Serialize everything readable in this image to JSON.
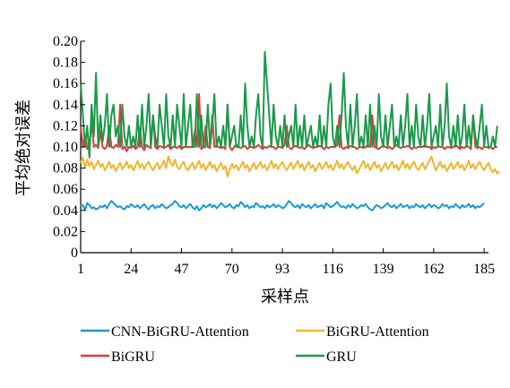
{
  "chart_data": {
    "type": "line",
    "title": "",
    "xlabel": "采样点",
    "ylabel": "平均绝对误差",
    "xlim": [
      1,
      187
    ],
    "ylim": [
      0,
      0.2
    ],
    "x_ticks": [
      1,
      24,
      47,
      70,
      93,
      116,
      139,
      162,
      185
    ],
    "y_ticks": [
      "0",
      "0.02",
      "0.04",
      "0.06",
      "0.08",
      "0.10",
      "0.12",
      "0.14",
      "0.16",
      "0.18",
      "0.20"
    ],
    "grid": false,
    "legend_position": "bottom",
    "series": [
      {
        "name": "CNN-BiGRU-Attention",
        "color": "#1a9ad6",
        "values": [
          0.044,
          0.045,
          0.04,
          0.047,
          0.045,
          0.042,
          0.043,
          0.041,
          0.042,
          0.044,
          0.043,
          0.045,
          0.042,
          0.046,
          0.049,
          0.047,
          0.045,
          0.043,
          0.044,
          0.042,
          0.041,
          0.044,
          0.043,
          0.046,
          0.044,
          0.043,
          0.045,
          0.042,
          0.044,
          0.046,
          0.043,
          0.041,
          0.044,
          0.045,
          0.042,
          0.044,
          0.043,
          0.046,
          0.044,
          0.042,
          0.043,
          0.045,
          0.046,
          0.049,
          0.047,
          0.044,
          0.043,
          0.045,
          0.042,
          0.044,
          0.046,
          0.043,
          0.041,
          0.044,
          0.04,
          0.042,
          0.045,
          0.043,
          0.044,
          0.046,
          0.043,
          0.045,
          0.042,
          0.044,
          0.047,
          0.045,
          0.043,
          0.044,
          0.046,
          0.043,
          0.042,
          0.045,
          0.044,
          0.048,
          0.046,
          0.043,
          0.045,
          0.042,
          0.044,
          0.043,
          0.047,
          0.045,
          0.043,
          0.044,
          0.042,
          0.045,
          0.043,
          0.044,
          0.046,
          0.043,
          0.045,
          0.044,
          0.042,
          0.043,
          0.046,
          0.049,
          0.047,
          0.044,
          0.043,
          0.045,
          0.042,
          0.046,
          0.044,
          0.043,
          0.045,
          0.042,
          0.044,
          0.046,
          0.043,
          0.044,
          0.045,
          0.042,
          0.047,
          0.045,
          0.043,
          0.044,
          0.046,
          0.048,
          0.045,
          0.043,
          0.044,
          0.042,
          0.045,
          0.043,
          0.046,
          0.044,
          0.042,
          0.043,
          0.045,
          0.044,
          0.046,
          0.043,
          0.041,
          0.04,
          0.043,
          0.045,
          0.044,
          0.042,
          0.043,
          0.045,
          0.047,
          0.044,
          0.043,
          0.045,
          0.042,
          0.044,
          0.046,
          0.043,
          0.044,
          0.045,
          0.042,
          0.044,
          0.043,
          0.046,
          0.044,
          0.043,
          0.045,
          0.042,
          0.044,
          0.046,
          0.043,
          0.045,
          0.044,
          0.042,
          0.043,
          0.046,
          0.044,
          0.045,
          0.042,
          0.044,
          0.043,
          0.046,
          0.044,
          0.042,
          0.045,
          0.043,
          0.044,
          0.046,
          0.043,
          0.045,
          0.042,
          0.044,
          0.043,
          0.045,
          0.047
        ]
      },
      {
        "name": "BiGRU-Attention",
        "color": "#f0b530",
        "values": [
          0.085,
          0.09,
          0.08,
          0.088,
          0.082,
          0.086,
          0.079,
          0.083,
          0.087,
          0.081,
          0.084,
          0.078,
          0.082,
          0.086,
          0.08,
          0.083,
          0.077,
          0.081,
          0.085,
          0.079,
          0.082,
          0.086,
          0.08,
          0.083,
          0.078,
          0.082,
          0.087,
          0.08,
          0.084,
          0.079,
          0.083,
          0.086,
          0.081,
          0.078,
          0.082,
          0.085,
          0.079,
          0.083,
          0.087,
          0.08,
          0.091,
          0.085,
          0.082,
          0.088,
          0.081,
          0.079,
          0.083,
          0.086,
          0.08,
          0.078,
          0.082,
          0.085,
          0.079,
          0.083,
          0.087,
          0.08,
          0.084,
          0.078,
          0.082,
          0.086,
          0.08,
          0.083,
          0.077,
          0.081,
          0.085,
          0.079,
          0.082,
          0.072,
          0.079,
          0.084,
          0.08,
          0.083,
          0.078,
          0.082,
          0.086,
          0.08,
          0.083,
          0.077,
          0.081,
          0.085,
          0.079,
          0.082,
          0.086,
          0.08,
          0.083,
          0.078,
          0.082,
          0.087,
          0.08,
          0.084,
          0.079,
          0.083,
          0.086,
          0.081,
          0.078,
          0.082,
          0.085,
          0.079,
          0.083,
          0.087,
          0.08,
          0.084,
          0.078,
          0.082,
          0.086,
          0.08,
          0.083,
          0.077,
          0.081,
          0.085,
          0.079,
          0.082,
          0.086,
          0.08,
          0.083,
          0.078,
          0.082,
          0.087,
          0.08,
          0.084,
          0.079,
          0.083,
          0.086,
          0.081,
          0.078,
          0.082,
          0.075,
          0.079,
          0.083,
          0.087,
          0.08,
          0.084,
          0.078,
          0.082,
          0.086,
          0.08,
          0.083,
          0.077,
          0.081,
          0.085,
          0.079,
          0.082,
          0.086,
          0.08,
          0.083,
          0.078,
          0.082,
          0.087,
          0.08,
          0.084,
          0.079,
          0.083,
          0.086,
          0.081,
          0.078,
          0.082,
          0.085,
          0.079,
          0.083,
          0.087,
          0.091,
          0.084,
          0.078,
          0.082,
          0.086,
          0.08,
          0.083,
          0.077,
          0.081,
          0.085,
          0.079,
          0.082,
          0.086,
          0.08,
          0.083,
          0.078,
          0.082,
          0.087,
          0.08,
          0.084,
          0.079,
          0.083,
          0.086,
          0.081,
          0.078,
          0.082,
          0.085,
          0.079,
          0.076,
          0.079,
          0.075,
          0.077
        ]
      },
      {
        "name": "BiGRU",
        "color": "#e03a3a",
        "values": [
          0.12,
          0.1,
          0.11,
          0.098,
          0.1,
          0.125,
          0.1,
          0.102,
          0.099,
          0.115,
          0.1,
          0.098,
          0.101,
          0.12,
          0.1,
          0.099,
          0.102,
          0.1,
          0.14,
          0.098,
          0.1,
          0.096,
          0.1,
          0.099,
          0.101,
          0.098,
          0.1,
          0.118,
          0.1,
          0.097,
          0.102,
          0.1,
          0.099,
          0.13,
          0.1,
          0.098,
          0.101,
          0.1,
          0.099,
          0.1,
          0.102,
          0.098,
          0.1,
          0.1,
          0.099,
          0.101,
          0.098,
          0.1,
          0.1,
          0.1,
          0.1,
          0.1,
          0.115,
          0.1,
          0.15,
          0.098,
          0.1,
          0.12,
          0.1,
          0.099,
          0.13,
          0.1,
          0.101,
          0.1,
          0.099,
          0.1,
          0.098,
          0.14,
          0.1,
          0.097,
          0.1,
          0.102,
          0.1,
          0.099,
          0.1,
          0.101,
          0.098,
          0.1,
          0.1,
          0.099,
          0.1,
          0.102,
          0.1,
          0.098,
          0.1,
          0.099,
          0.101,
          0.1,
          0.1,
          0.098,
          0.1,
          0.1,
          0.099,
          0.102,
          0.12,
          0.1,
          0.098,
          0.1,
          0.101,
          0.1,
          0.099,
          0.1,
          0.098,
          0.1,
          0.102,
          0.1,
          0.099,
          0.1,
          0.1,
          0.101,
          0.1,
          0.098,
          0.1,
          0.099,
          0.1,
          0.1,
          0.1,
          0.102,
          0.13,
          0.1,
          0.098,
          0.1,
          0.099,
          0.101,
          0.1,
          0.1,
          0.098,
          0.1,
          0.1,
          0.099,
          0.1,
          0.102,
          0.1,
          0.13,
          0.1,
          0.099,
          0.098,
          0.1,
          0.101,
          0.1,
          0.099,
          0.1,
          0.098,
          0.1,
          0.102,
          0.1,
          0.099,
          0.1,
          0.1,
          0.101,
          0.1,
          0.098,
          0.1,
          0.099,
          0.1,
          0.1,
          0.1,
          0.102,
          0.1,
          0.1,
          0.098,
          0.1,
          0.099,
          0.101,
          0.1,
          0.1,
          0.098,
          0.1,
          0.1,
          0.099,
          0.1,
          0.102,
          0.1,
          0.098,
          0.1,
          0.099,
          0.101,
          0.1,
          0.098,
          0.13,
          0.1,
          0.099,
          0.1,
          0.098,
          0.1,
          0.1,
          0.099,
          0.1,
          0.098,
          0.1,
          0.1
        ]
      },
      {
        "name": "GRU",
        "color": "#1a9a4a",
        "values": [
          0.16,
          0.13,
          0.1,
          0.12,
          0.09,
          0.14,
          0.11,
          0.17,
          0.1,
          0.13,
          0.105,
          0.12,
          0.15,
          0.1,
          0.13,
          0.14,
          0.11,
          0.12,
          0.1,
          0.14,
          0.11,
          0.1,
          0.12,
          0.1,
          0.11,
          0.1,
          0.13,
          0.1,
          0.14,
          0.1,
          0.12,
          0.15,
          0.1,
          0.13,
          0.11,
          0.1,
          0.14,
          0.12,
          0.1,
          0.15,
          0.11,
          0.1,
          0.13,
          0.1,
          0.14,
          0.12,
          0.1,
          0.15,
          0.1,
          0.12,
          0.14,
          0.1,
          0.1,
          0.15,
          0.1,
          0.13,
          0.1,
          0.1,
          0.14,
          0.1,
          0.12,
          0.15,
          0.1,
          0.11,
          0.1,
          0.12,
          0.1,
          0.14,
          0.1,
          0.11,
          0.12,
          0.1,
          0.1,
          0.13,
          0.1,
          0.16,
          0.12,
          0.1,
          0.11,
          0.1,
          0.13,
          0.15,
          0.11,
          0.1,
          0.19,
          0.16,
          0.13,
          0.1,
          0.14,
          0.11,
          0.1,
          0.12,
          0.1,
          0.13,
          0.1,
          0.11,
          0.12,
          0.1,
          0.14,
          0.1,
          0.12,
          0.1,
          0.13,
          0.1,
          0.11,
          0.12,
          0.1,
          0.11,
          0.1,
          0.13,
          0.1,
          0.12,
          0.1,
          0.14,
          0.16,
          0.11,
          0.1,
          0.12,
          0.1,
          0.13,
          0.17,
          0.12,
          0.1,
          0.14,
          0.1,
          0.12,
          0.15,
          0.1,
          0.11,
          0.1,
          0.13,
          0.1,
          0.14,
          0.1,
          0.12,
          0.1,
          0.15,
          0.11,
          0.1,
          0.13,
          0.1,
          0.12,
          0.14,
          0.1,
          0.11,
          0.1,
          0.13,
          0.1,
          0.12,
          0.15,
          0.1,
          0.12,
          0.1,
          0.14,
          0.11,
          0.1,
          0.13,
          0.1,
          0.12,
          0.15,
          0.1,
          0.11,
          0.12,
          0.1,
          0.14,
          0.1,
          0.12,
          0.16,
          0.11,
          0.1,
          0.12,
          0.1,
          0.13,
          0.1,
          0.11,
          0.14,
          0.1,
          0.12,
          0.1,
          0.13,
          0.11,
          0.1,
          0.12,
          0.14,
          0.1,
          0.12,
          0.1,
          0.1,
          0.11,
          0.1,
          0.12
        ]
      }
    ]
  }
}
